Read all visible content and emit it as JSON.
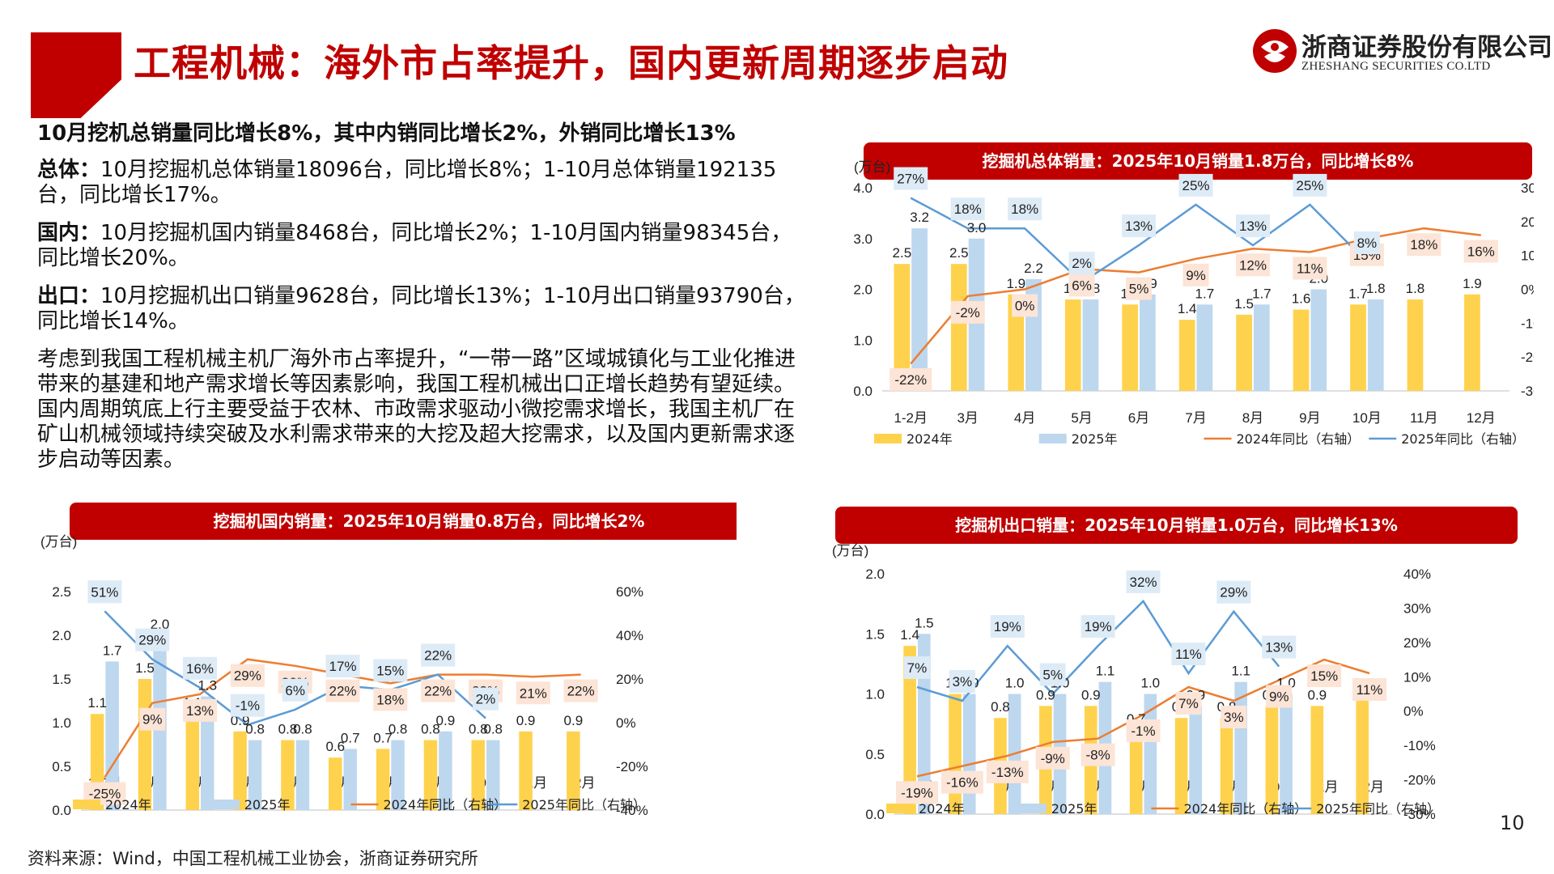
{
  "header": {
    "title": "工程机械：海外市占率提升，国内更新周期逐步启动"
  },
  "logo": {
    "cn": "浙商证券股份有限公司",
    "en": "ZHESHANG SECURITIES CO.LTD"
  },
  "text": {
    "lead": "10月挖机总销量同比增长8%，其中内销同比增长2%，外销同比增长13%",
    "total_label": "总体：",
    "total_body": "10月挖掘机总体销量18096台，同比增长8%；1-10月总体销量192135台，同比增长17%。",
    "domestic_label": "国内：",
    "domestic_body": "10月挖掘机国内销量8468台，同比增长2%；1-10月国内销量98345台，同比增长20%。",
    "export_label": "出口：",
    "export_body": "10月挖掘机出口销量9628台，同比增长13%；1-10月出口销量93790台，同比增长14%。",
    "analysis": "考虑到我国工程机械主机厂海外市占率提升，“一带一路”区域城镇化与工业化推进带来的基建和地产需求增长等因素影响，我国工程机械出口正增长趋势有望延续。国内周期筑底上行主要受益于农林、市政需求驱动小微挖需求增长，我国主机厂在矿山机械领域持续突破及水利需求带来的大挖及超大挖需求，以及国内更新需求逐步启动等因素。"
  },
  "colors": {
    "brand_red": "#c00000",
    "bar_2024": "#ffd24d",
    "bar_2025": "#bdd7ee",
    "line_2024": "#ed7d31",
    "line_2025": "#5b9bd5",
    "label_2024_bg": "#fce4d6",
    "label_2025_bg": "#ddebf7"
  },
  "source": "资料来源：Wind，中国工程机械工业协会，浙商证券研究所",
  "page_number": "10",
  "chart_data": [
    {
      "id": "total",
      "type": "bar",
      "title": "挖掘机总体销量：2025年10月销量1.8万台，同比增长8%",
      "ylabel": "(万台)",
      "categories": [
        "1-2月",
        "3月",
        "4月",
        "5月",
        "6月",
        "7月",
        "8月",
        "9月",
        "10月",
        "11月",
        "12月"
      ],
      "ylim": [
        0,
        4
      ],
      "yticks": [
        "0.0",
        "1.0",
        "2.0",
        "3.0",
        "4.0"
      ],
      "y2lim": [
        -30,
        30
      ],
      "y2ticks": [
        "-30%",
        "-20%",
        "-10%",
        "0%",
        "10%",
        "20%",
        "30%"
      ],
      "series": [
        {
          "name": "2024年",
          "kind": "bar",
          "values": [
            2.5,
            2.5,
            1.9,
            1.8,
            1.7,
            1.4,
            1.5,
            1.6,
            1.7,
            1.8,
            1.9
          ],
          "labels": [
            "2.5",
            "2.5",
            "1.9",
            "1.8",
            "1.7",
            "1.4",
            "1.5",
            "1.6",
            "1.7",
            "1.8",
            "1.9"
          ]
        },
        {
          "name": "2025年",
          "kind": "bar",
          "values": [
            3.2,
            3.0,
            2.2,
            1.8,
            1.9,
            1.7,
            1.7,
            2.0,
            1.8,
            null,
            null
          ],
          "labels": [
            "3.2",
            "3.0",
            "2.2",
            "1.8",
            "1.9",
            "1.7",
            "1.7",
            "2.0",
            "1.8",
            "",
            ""
          ]
        },
        {
          "name": "2024年同比（右轴）",
          "kind": "line",
          "values": [
            -22,
            -2,
            0,
            6,
            5,
            9,
            12,
            11,
            15,
            18,
            16
          ],
          "labels": [
            "-22%",
            "-2%",
            "0%",
            "6%",
            "5%",
            "9%",
            "12%",
            "11%",
            "15%",
            "18%",
            "16%"
          ]
        },
        {
          "name": "2025年同比（右轴）",
          "kind": "line",
          "values": [
            27,
            18,
            18,
            2,
            13,
            25,
            13,
            25,
            8,
            null,
            null
          ],
          "labels": [
            "27%",
            "18%",
            "18%",
            "2%",
            "13%",
            "25%",
            "13%",
            "25%",
            "8%",
            "",
            ""
          ]
        }
      ],
      "legend": "bottom"
    },
    {
      "id": "domestic",
      "type": "bar",
      "title": "挖掘机国内销量：2025年10月销量0.8万台，同比增长2%",
      "ylabel": "(万台)",
      "categories": [
        "1-2月",
        "3月",
        "4月",
        "5月",
        "6月",
        "7月",
        "8月",
        "9月",
        "10月",
        "11月",
        "12月"
      ],
      "ylim": [
        0,
        2.5
      ],
      "yticks": [
        "0.0",
        "0.5",
        "1.0",
        "1.5",
        "2.0",
        "2.5"
      ],
      "y2lim": [
        -40,
        60
      ],
      "y2ticks": [
        "-40%",
        "-20%",
        "0%",
        "20%",
        "40%",
        "60%"
      ],
      "series": [
        {
          "name": "2024年",
          "kind": "bar",
          "values": [
            1.1,
            1.5,
            1.1,
            0.9,
            0.8,
            0.6,
            0.7,
            0.8,
            0.8,
            0.9,
            0.9
          ],
          "labels": [
            "1.1",
            "1.5",
            "1.1",
            "0.9",
            "0.8",
            "0.6",
            "0.7",
            "0.8",
            "0.8",
            "0.9",
            "0.9"
          ]
        },
        {
          "name": "2025年",
          "kind": "bar",
          "values": [
            1.7,
            2.0,
            1.3,
            0.8,
            0.8,
            0.7,
            0.8,
            0.9,
            0.8,
            null,
            null
          ],
          "labels": [
            "1.7",
            "2.0",
            "1.3",
            "0.8",
            "0.8",
            "0.7",
            "0.8",
            "0.9",
            "0.8",
            "",
            ""
          ]
        },
        {
          "name": "2024年同比（右轴）",
          "kind": "line",
          "values": [
            -25,
            9,
            13,
            29,
            26,
            22,
            18,
            22,
            22,
            21,
            22
          ],
          "labels": [
            "-25%",
            "9%",
            "13%",
            "29%",
            "26%",
            "22%",
            "18%",
            "22%",
            "22%",
            "21%",
            "22%"
          ]
        },
        {
          "name": "2025年同比（右轴）",
          "kind": "line",
          "values": [
            51,
            29,
            16,
            -1,
            6,
            17,
            15,
            22,
            2,
            null,
            null
          ],
          "labels": [
            "51%",
            "29%",
            "16%",
            "-1%",
            "6%",
            "17%",
            "15%",
            "22%",
            "2%",
            "",
            ""
          ]
        }
      ],
      "legend": "bottom"
    },
    {
      "id": "export",
      "type": "bar",
      "title": "挖掘机出口销量：2025年10月销量1.0万台，同比增长13%",
      "ylabel": "(万台)",
      "categories": [
        "1-2月",
        "3月",
        "4月",
        "5月",
        "6月",
        "7月",
        "8月",
        "9月",
        "10月",
        "11月",
        "12月"
      ],
      "ylim": [
        0,
        2
      ],
      "yticks": [
        "0.0",
        "0.5",
        "1.0",
        "1.5",
        "2.0"
      ],
      "y2lim": [
        -30,
        40
      ],
      "y2ticks": [
        "-30%",
        "-20%",
        "-10%",
        "0%",
        "10%",
        "20%",
        "30%",
        "40%"
      ],
      "series": [
        {
          "name": "2024年",
          "kind": "bar",
          "values": [
            1.4,
            1.0,
            0.8,
            0.9,
            0.9,
            0.7,
            0.8,
            0.8,
            0.9,
            0.9,
            1.0
          ],
          "labels": [
            "1.4",
            "1.0",
            "0.8",
            "0.9",
            "0.9",
            "0.7",
            "0.8",
            "0.8",
            "0.9",
            "0.9",
            "1.0"
          ]
        },
        {
          "name": "2025年",
          "kind": "bar",
          "values": [
            1.5,
            1.0,
            1.0,
            1.0,
            1.1,
            1.0,
            0.9,
            1.1,
            1.0,
            null,
            null
          ],
          "labels": [
            "1.5",
            "1.0",
            "1.0",
            "1.0",
            "1.1",
            "1.0",
            "0.9",
            "1.1",
            "1.0",
            "",
            ""
          ]
        },
        {
          "name": "2024年同比（右轴）",
          "kind": "line",
          "values": [
            -19,
            -16,
            -13,
            -9,
            -8,
            -1,
            7,
            3,
            9,
            15,
            11
          ],
          "labels": [
            "-19%",
            "-16%",
            "-13%",
            "-9%",
            "-8%",
            "-1%",
            "7%",
            "3%",
            "9%",
            "15%",
            "11%"
          ]
        },
        {
          "name": "2025年同比（右轴）",
          "kind": "line",
          "values": [
            7,
            3,
            19,
            5,
            19,
            32,
            11,
            29,
            13,
            null,
            null
          ],
          "labels": [
            "7%",
            "3%",
            "19%",
            "5%",
            "19%",
            "32%",
            "11%",
            "29%",
            "13%",
            "",
            ""
          ]
        }
      ],
      "legend": "bottom"
    }
  ]
}
